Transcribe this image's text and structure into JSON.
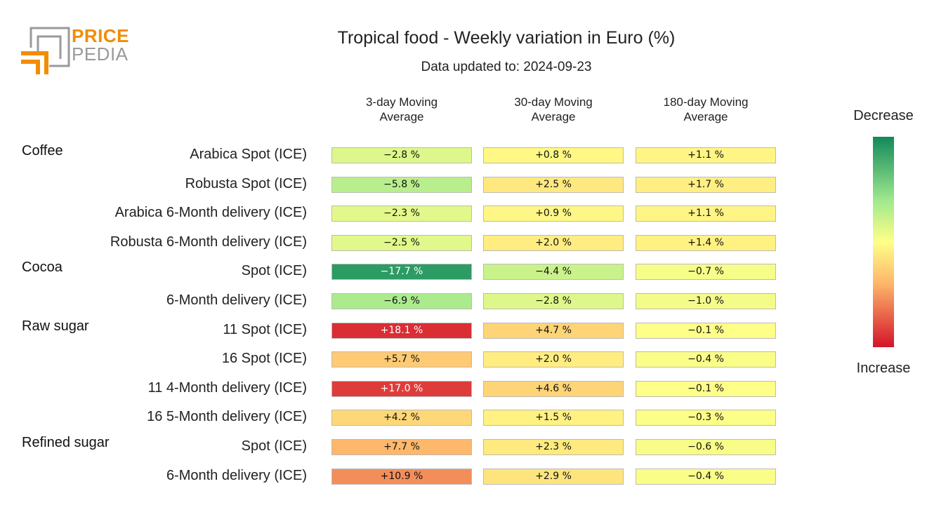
{
  "logo": {
    "word1": "PRICE",
    "word2": "PEDIA"
  },
  "colors": {
    "accent": "#f28c00",
    "logo_gray": "#9a9a9a"
  },
  "chart_data": {
    "type": "heatmap",
    "title": "Tropical food - Weekly variation in Euro (%)",
    "subtitle": "Data updated to: 2024-09-23",
    "columns": [
      {
        "line1": "3-day Moving",
        "line2": "Average"
      },
      {
        "line1": "30-day Moving",
        "line2": "Average"
      },
      {
        "line1": "180-day Moving",
        "line2": "Average"
      }
    ],
    "unit": "%",
    "groups": [
      "Coffee",
      "Cocoa",
      "Raw sugar",
      "Refined sugar"
    ],
    "rows": [
      {
        "group": "Coffee",
        "label": "Arabica Spot (ICE)",
        "values": [
          -2.8,
          0.8,
          1.1
        ]
      },
      {
        "group": "",
        "label": "Robusta Spot (ICE)",
        "values": [
          -5.8,
          2.5,
          1.7
        ]
      },
      {
        "group": "",
        "label": "Arabica 6-Month delivery (ICE)",
        "values": [
          -2.3,
          0.9,
          1.1
        ]
      },
      {
        "group": "",
        "label": "Robusta 6-Month delivery (ICE)",
        "values": [
          -2.5,
          2.0,
          1.4
        ]
      },
      {
        "group": "Cocoa",
        "label": "Spot (ICE)",
        "values": [
          -17.7,
          -4.4,
          -0.7
        ]
      },
      {
        "group": "",
        "label": "6-Month delivery (ICE)",
        "values": [
          -6.9,
          -2.8,
          -1.0
        ]
      },
      {
        "group": "Raw sugar",
        "label": "11 Spot (ICE)",
        "values": [
          18.1,
          4.7,
          -0.1
        ]
      },
      {
        "group": "",
        "label": "16 Spot (ICE)",
        "values": [
          5.7,
          2.0,
          -0.4
        ]
      },
      {
        "group": "",
        "label": "11 4-Month delivery (ICE)",
        "values": [
          17.0,
          4.6,
          -0.1
        ]
      },
      {
        "group": "",
        "label": "16 5-Month delivery (ICE)",
        "values": [
          4.2,
          1.5,
          -0.3
        ]
      },
      {
        "group": "Refined sugar",
        "label": "Spot (ICE)",
        "values": [
          7.7,
          2.3,
          -0.6
        ]
      },
      {
        "group": "",
        "label": "6-Month delivery (ICE)",
        "values": [
          10.9,
          2.9,
          -0.4
        ]
      }
    ],
    "legend": {
      "top": "Decrease",
      "bottom": "Increase"
    },
    "color_scale": {
      "min": -20,
      "max": 20,
      "low_color": "#12895a",
      "mid_color": "#ffff88",
      "high_color": "#d4142a"
    }
  }
}
